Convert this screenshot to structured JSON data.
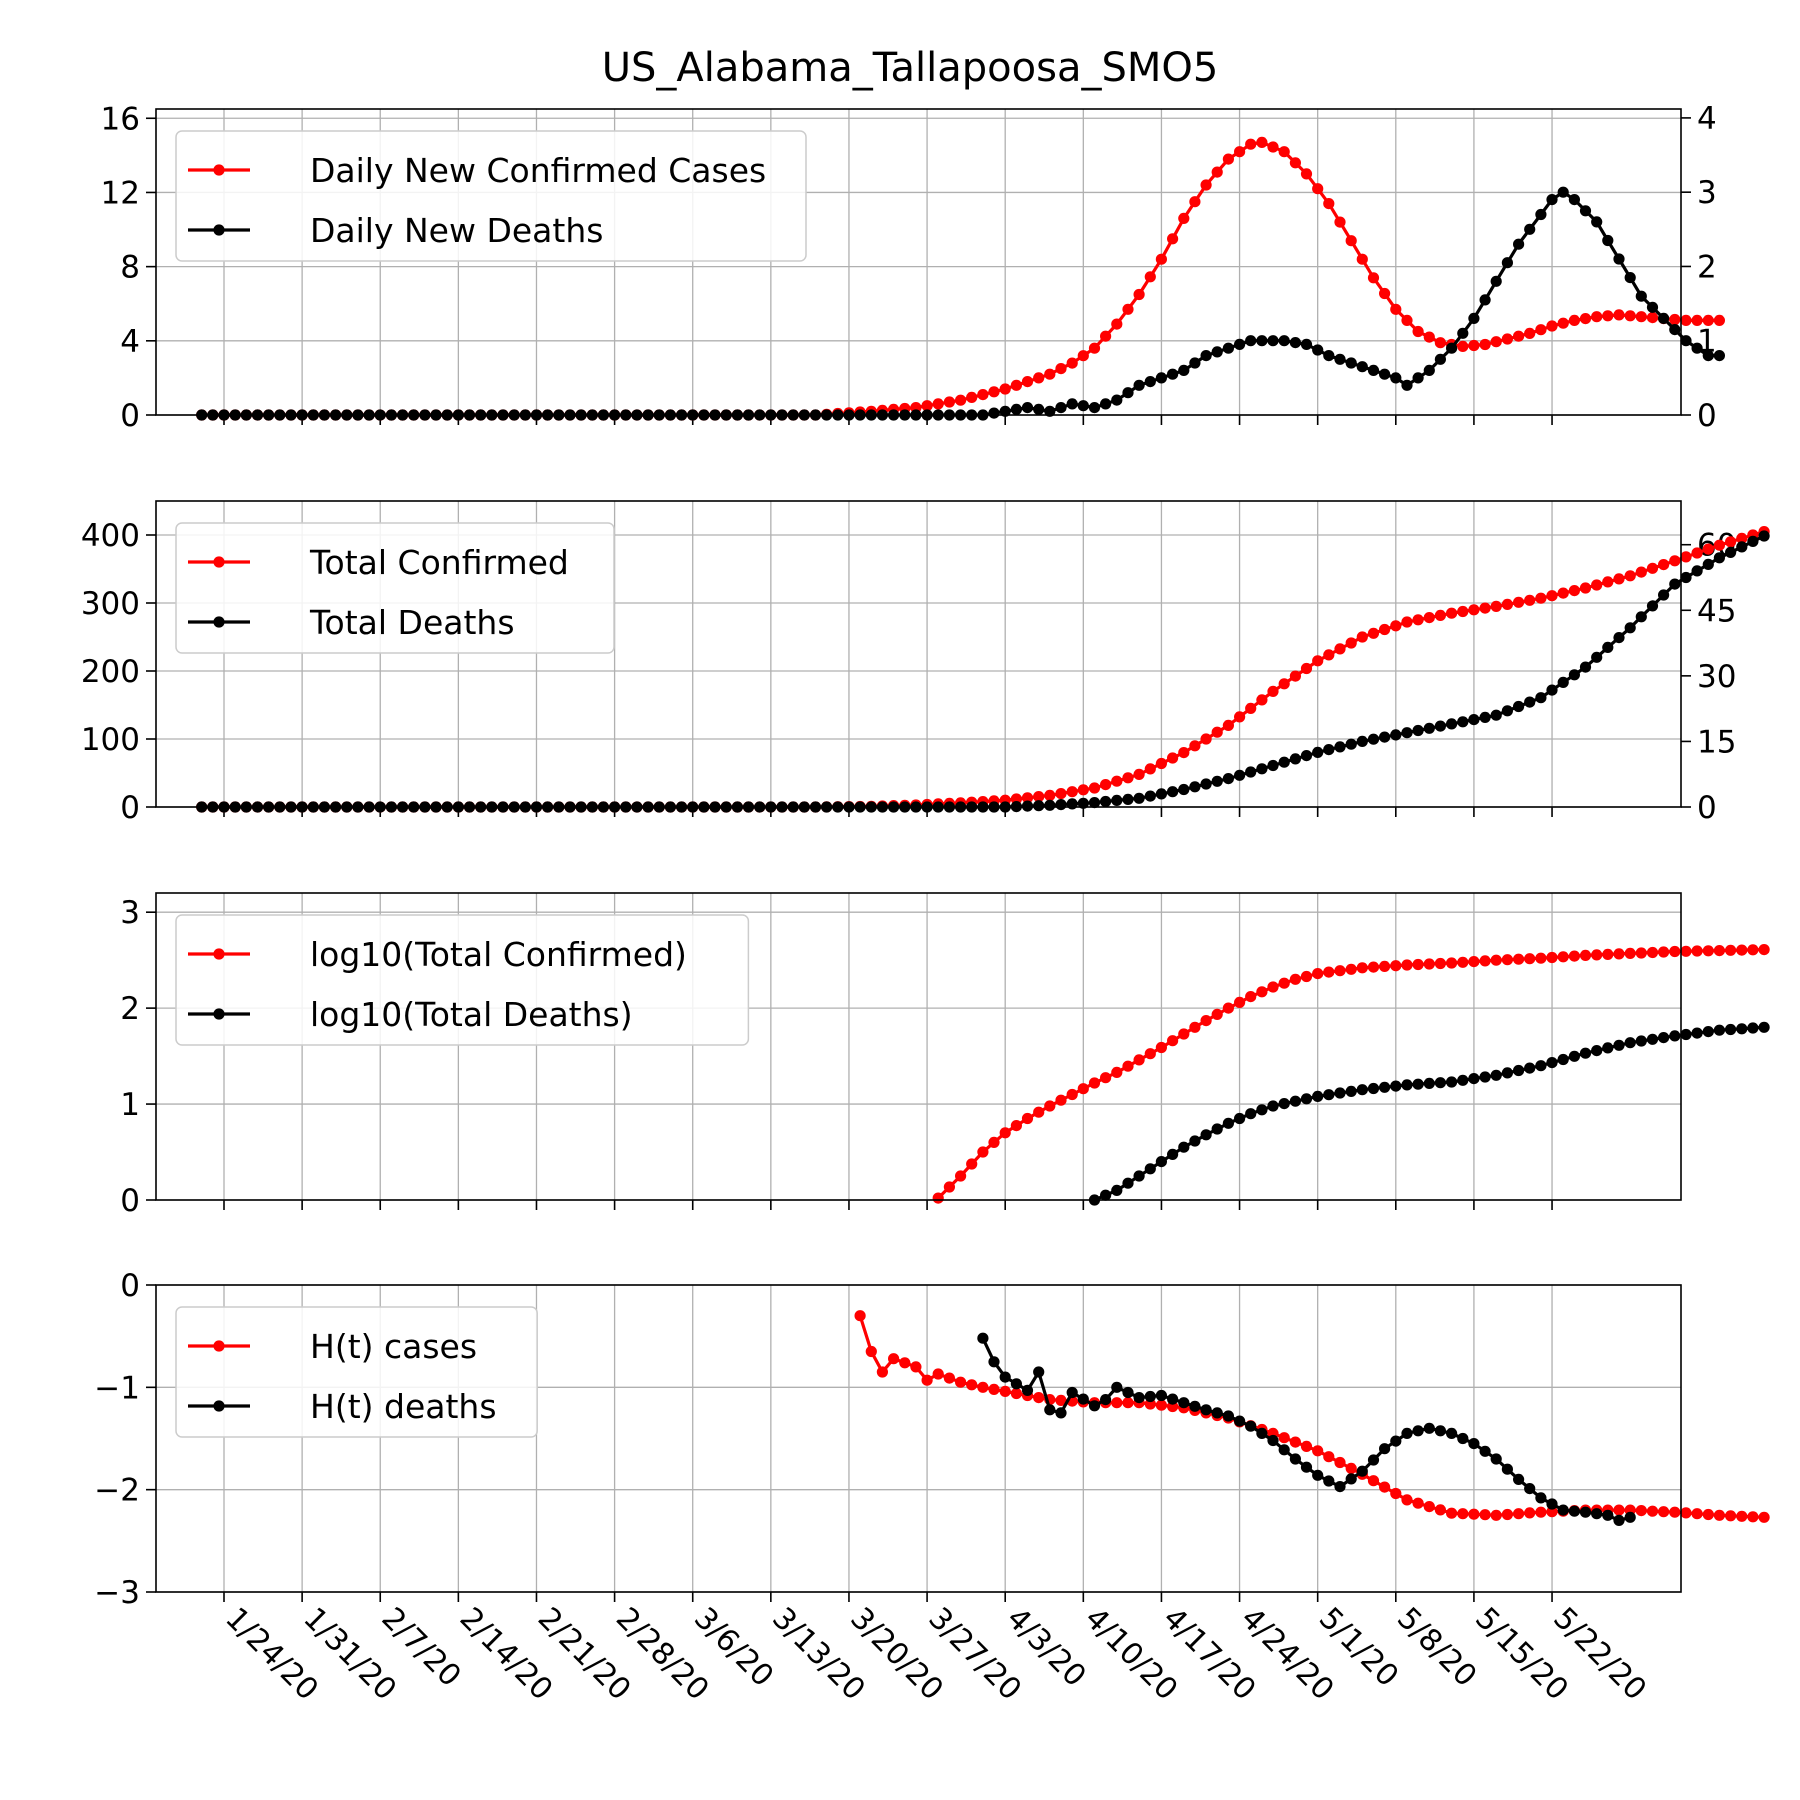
{
  "chart_data": [
    {
      "type": "line",
      "title": "US_Alabama_Tallapoosa_SMO5",
      "x_categories": [
        "1/24/20",
        "1/31/20",
        "2/7/20",
        "2/14/20",
        "2/21/20",
        "2/28/20",
        "3/6/20",
        "3/13/20",
        "3/20/20",
        "3/27/20",
        "4/3/20",
        "4/10/20",
        "4/17/20",
        "4/24/20",
        "5/1/20",
        "5/8/20",
        "5/15/20",
        "5/22/20"
      ],
      "start_date": "1/22/20",
      "ylim_left": [
        0,
        16.5
      ],
      "yticks_left": [
        0,
        4,
        8,
        12,
        16
      ],
      "ylim_right": [
        0,
        4.12
      ],
      "yticks_right": [
        0,
        1,
        2,
        3,
        4
      ],
      "grid": true,
      "legend_position": "top-left",
      "series": [
        {
          "name": "Daily New Confirmed Cases",
          "color": "#ff0000",
          "axis": "left",
          "points": [
            [
              0,
              0
            ],
            [
              55,
              0
            ],
            [
              60,
              0.2
            ],
            [
              64,
              0.4
            ],
            [
              68,
              0.8
            ],
            [
              72,
              1.4
            ],
            [
              76,
              2.2
            ],
            [
              78,
              2.8
            ],
            [
              80,
              3.6
            ],
            [
              82,
              4.9
            ],
            [
              84,
              6.5
            ],
            [
              86,
              8.4
            ],
            [
              88,
              10.6
            ],
            [
              90,
              12.4
            ],
            [
              92,
              13.8
            ],
            [
              94,
              14.6
            ],
            [
              95,
              14.7
            ],
            [
              97,
              14.2
            ],
            [
              99,
              13.0
            ],
            [
              101,
              11.4
            ],
            [
              103,
              9.4
            ],
            [
              105,
              7.4
            ],
            [
              107,
              5.7
            ],
            [
              109,
              4.5
            ],
            [
              111,
              3.9
            ],
            [
              113,
              3.7
            ],
            [
              115,
              3.8
            ],
            [
              117,
              4.1
            ],
            [
              119,
              4.4
            ],
            [
              121,
              4.8
            ],
            [
              123,
              5.1
            ],
            [
              125,
              5.3
            ],
            [
              127,
              5.4
            ],
            [
              129,
              5.3
            ],
            [
              131,
              5.2
            ],
            [
              133,
              5.1
            ],
            [
              135,
              5.1
            ],
            [
              136,
              5.1
            ]
          ]
        },
        {
          "name": "Daily New Deaths",
          "color": "#000000",
          "axis": "right",
          "points": [
            [
              0,
              0
            ],
            [
              70,
              0
            ],
            [
              72,
              0.05
            ],
            [
              74,
              0.1
            ],
            [
              76,
              0.05
            ],
            [
              78,
              0.15
            ],
            [
              80,
              0.1
            ],
            [
              82,
              0.2
            ],
            [
              84,
              0.4
            ],
            [
              86,
              0.5
            ],
            [
              88,
              0.6
            ],
            [
              90,
              0.8
            ],
            [
              92,
              0.9
            ],
            [
              94,
              1.0
            ],
            [
              97,
              1.0
            ],
            [
              99,
              0.95
            ],
            [
              101,
              0.8
            ],
            [
              103,
              0.7
            ],
            [
              105,
              0.6
            ],
            [
              107,
              0.5
            ],
            [
              108,
              0.4
            ],
            [
              110,
              0.6
            ],
            [
              112,
              0.9
            ],
            [
              114,
              1.3
            ],
            [
              116,
              1.8
            ],
            [
              118,
              2.3
            ],
            [
              120,
              2.7
            ],
            [
              121,
              2.9
            ],
            [
              122,
              3.0
            ],
            [
              123,
              2.9
            ],
            [
              125,
              2.6
            ],
            [
              127,
              2.1
            ],
            [
              129,
              1.6
            ],
            [
              131,
              1.3
            ],
            [
              133,
              1.0
            ],
            [
              135,
              0.8
            ],
            [
              136,
              0.8
            ]
          ]
        }
      ]
    },
    {
      "type": "line",
      "ylim_left": [
        0,
        450
      ],
      "yticks_left": [
        0,
        100,
        200,
        300,
        400
      ],
      "ylim_right": [
        0,
        70
      ],
      "yticks_right": [
        0,
        15,
        30,
        45,
        60
      ],
      "grid": true,
      "legend_position": "top-left",
      "series": [
        {
          "name": "Total Confirmed",
          "color": "#ff0000",
          "axis": "left",
          "points": [
            [
              0,
              0
            ],
            [
              55,
              0
            ],
            [
              60,
              1
            ],
            [
              64,
              3
            ],
            [
              68,
              6
            ],
            [
              72,
              10
            ],
            [
              76,
              17
            ],
            [
              80,
              28
            ],
            [
              84,
              48
            ],
            [
              88,
              80
            ],
            [
              92,
              120
            ],
            [
              96,
              170
            ],
            [
              100,
              215
            ],
            [
              104,
              250
            ],
            [
              108,
              272
            ],
            [
              112,
              285
            ],
            [
              116,
              295
            ],
            [
              120,
              307
            ],
            [
              124,
              322
            ],
            [
              128,
              340
            ],
            [
              132,
              362
            ],
            [
              136,
              385
            ],
            [
              140,
              405
            ]
          ]
        },
        {
          "name": "Total Deaths",
          "color": "#000000",
          "axis": "right",
          "points": [
            [
              0,
              0
            ],
            [
              72,
              0
            ],
            [
              76,
              0.4
            ],
            [
              80,
              1
            ],
            [
              84,
              2
            ],
            [
              88,
              4
            ],
            [
              92,
              6.5
            ],
            [
              96,
              9.5
            ],
            [
              100,
              12.5
            ],
            [
              104,
              15
            ],
            [
              108,
              17
            ],
            [
              112,
              19
            ],
            [
              116,
              21
            ],
            [
              120,
              25
            ],
            [
              124,
              32
            ],
            [
              128,
              41
            ],
            [
              132,
              51
            ],
            [
              136,
              57
            ],
            [
              140,
              62
            ]
          ]
        }
      ]
    },
    {
      "type": "line",
      "ylim": [
        0,
        3.2
      ],
      "yticks": [
        0,
        1,
        2,
        3
      ],
      "grid": true,
      "legend_position": "top-left",
      "series": [
        {
          "name": "log10(Total Confirmed)",
          "color": "#ff0000",
          "points": [
            [
              66,
              0.02
            ],
            [
              68,
              0.25
            ],
            [
              70,
              0.5
            ],
            [
              72,
              0.7
            ],
            [
              74,
              0.85
            ],
            [
              76,
              0.98
            ],
            [
              78,
              1.1
            ],
            [
              80,
              1.22
            ],
            [
              82,
              1.33
            ],
            [
              84,
              1.46
            ],
            [
              86,
              1.59
            ],
            [
              88,
              1.73
            ],
            [
              90,
              1.87
            ],
            [
              92,
              2.0
            ],
            [
              94,
              2.12
            ],
            [
              96,
              2.22
            ],
            [
              98,
              2.3
            ],
            [
              100,
              2.36
            ],
            [
              104,
              2.42
            ],
            [
              108,
              2.45
            ],
            [
              112,
              2.47
            ],
            [
              116,
              2.5
            ],
            [
              120,
              2.52
            ],
            [
              124,
              2.55
            ],
            [
              128,
              2.57
            ],
            [
              132,
              2.59
            ],
            [
              136,
              2.6
            ],
            [
              140,
              2.61
            ]
          ]
        },
        {
          "name": "log10(Total Deaths)",
          "color": "#000000",
          "points": [
            [
              80,
              0.0
            ],
            [
              82,
              0.1
            ],
            [
              84,
              0.25
            ],
            [
              86,
              0.4
            ],
            [
              88,
              0.55
            ],
            [
              90,
              0.68
            ],
            [
              92,
              0.8
            ],
            [
              94,
              0.9
            ],
            [
              96,
              0.98
            ],
            [
              100,
              1.08
            ],
            [
              104,
              1.15
            ],
            [
              108,
              1.2
            ],
            [
              112,
              1.23
            ],
            [
              116,
              1.3
            ],
            [
              120,
              1.4
            ],
            [
              124,
              1.53
            ],
            [
              128,
              1.64
            ],
            [
              132,
              1.71
            ],
            [
              136,
              1.77
            ],
            [
              140,
              1.8
            ]
          ]
        }
      ]
    },
    {
      "type": "line",
      "ylim": [
        -3,
        0
      ],
      "yticks": [
        0,
        -1,
        -2,
        -3
      ],
      "ytick_labels": [
        "0",
        "−1",
        "−2",
        "−3"
      ],
      "grid": true,
      "legend_position": "top-left",
      "series": [
        {
          "name": "H(t) cases",
          "color": "#ff0000",
          "points": [
            [
              59,
              -0.3
            ],
            [
              60,
              -0.65
            ],
            [
              61,
              -0.85
            ],
            [
              62,
              -0.72
            ],
            [
              64,
              -0.8
            ],
            [
              65,
              -0.93
            ],
            [
              66,
              -0.87
            ],
            [
              68,
              -0.95
            ],
            [
              70,
              -1.0
            ],
            [
              72,
              -1.04
            ],
            [
              76,
              -1.12
            ],
            [
              80,
              -1.15
            ],
            [
              84,
              -1.15
            ],
            [
              88,
              -1.2
            ],
            [
              92,
              -1.3
            ],
            [
              96,
              -1.45
            ],
            [
              100,
              -1.62
            ],
            [
              104,
              -1.85
            ],
            [
              108,
              -2.1
            ],
            [
              112,
              -2.23
            ],
            [
              116,
              -2.25
            ],
            [
              120,
              -2.22
            ],
            [
              124,
              -2.2
            ],
            [
              128,
              -2.2
            ],
            [
              132,
              -2.22
            ],
            [
              136,
              -2.25
            ],
            [
              140,
              -2.27
            ]
          ]
        },
        {
          "name": "H(t) deaths",
          "color": "#000000",
          "points": [
            [
              70,
              -0.52
            ],
            [
              71,
              -0.75
            ],
            [
              72,
              -0.9
            ],
            [
              74,
              -1.03
            ],
            [
              75,
              -0.85
            ],
            [
              76,
              -1.22
            ],
            [
              77,
              -1.25
            ],
            [
              78,
              -1.05
            ],
            [
              80,
              -1.18
            ],
            [
              81,
              -1.12
            ],
            [
              82,
              -1.0
            ],
            [
              84,
              -1.1
            ],
            [
              86,
              -1.08
            ],
            [
              88,
              -1.15
            ],
            [
              90,
              -1.22
            ],
            [
              92,
              -1.28
            ],
            [
              94,
              -1.38
            ],
            [
              96,
              -1.52
            ],
            [
              98,
              -1.7
            ],
            [
              100,
              -1.86
            ],
            [
              102,
              -1.97
            ],
            [
              104,
              -1.82
            ],
            [
              106,
              -1.6
            ],
            [
              108,
              -1.45
            ],
            [
              110,
              -1.4
            ],
            [
              112,
              -1.45
            ],
            [
              114,
              -1.55
            ],
            [
              116,
              -1.7
            ],
            [
              118,
              -1.9
            ],
            [
              120,
              -2.08
            ],
            [
              122,
              -2.2
            ],
            [
              124,
              -2.22
            ],
            [
              126,
              -2.25
            ],
            [
              127,
              -2.3
            ],
            [
              128,
              -2.27
            ]
          ]
        }
      ]
    }
  ]
}
